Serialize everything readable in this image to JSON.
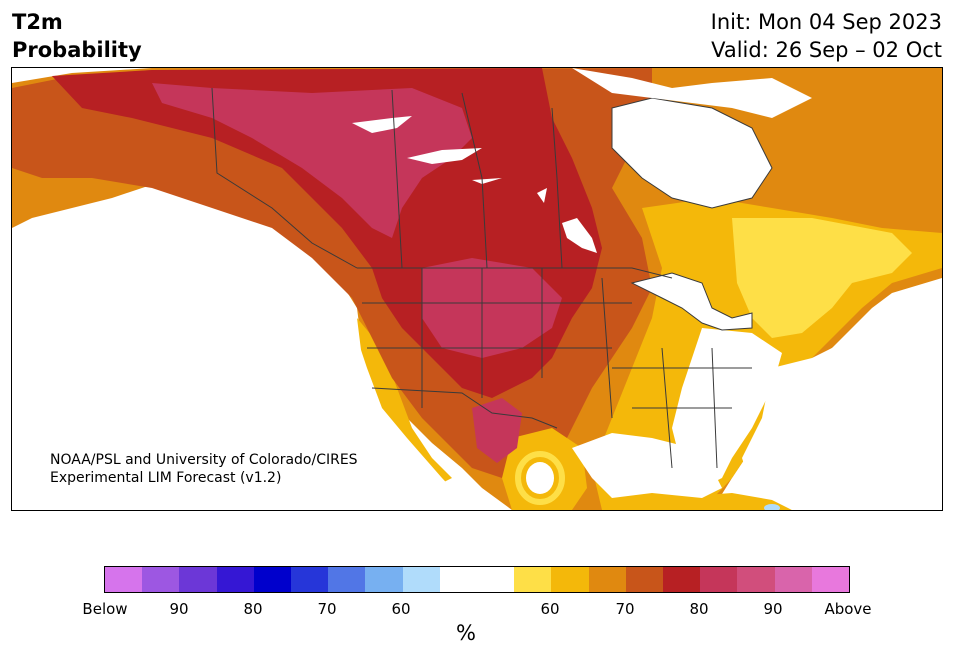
{
  "title": {
    "line1": "T2m",
    "line2": "Probability"
  },
  "header_right": {
    "init": "Init: Mon 04 Sep 2023",
    "valid": "Valid: 26 Sep – 02 Oct"
  },
  "credit": {
    "line1": "NOAA/PSL and University of Colorado/CIRES",
    "line2": "Experimental LIM Forecast (v1.2)"
  },
  "colorbar": {
    "colors": [
      "#d674ec",
      "#9d57e2",
      "#6c37d7",
      "#3517d4",
      "#0000cc",
      "#2636d9",
      "#5176e6",
      "#77b0f1",
      "#b0dcfb",
      "#ffffff",
      "#ffffff",
      "#fedf47",
      "#f4b80a",
      "#e08910",
      "#c8551a",
      "#b72023",
      "#c5365a",
      "#d14e7c",
      "#d964ab",
      "#e878dd"
    ],
    "tick_labels": [
      "Below",
      "90",
      "80",
      "70",
      "60",
      "60",
      "70",
      "80",
      "90",
      "Above"
    ],
    "unit": "%"
  },
  "palette": {
    "land_white": "#ffffff",
    "yellow": "#fedf47",
    "gold": "#f4b80a",
    "orange": "#e08910",
    "dark_orange": "#c8551a",
    "red": "#b72023",
    "crimson": "#c5365a",
    "pink": "#d14e7c",
    "light_blue": "#b0dcfb",
    "border": "#3a3a3a"
  }
}
